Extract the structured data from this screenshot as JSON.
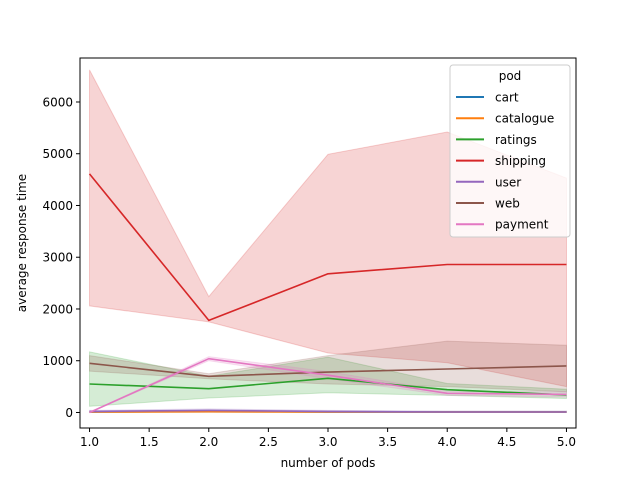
{
  "chart_data": {
    "type": "line",
    "title": "",
    "xlabel": "number of pods",
    "ylabel": "average response time",
    "xlim": [
      0.92,
      5.08
    ],
    "ylim": [
      -300,
      6850
    ],
    "xticks": [
      1.0,
      1.5,
      2.0,
      2.5,
      3.0,
      3.5,
      4.0,
      4.5,
      5.0
    ],
    "xtick_labels": [
      "1.0",
      "1.5",
      "2.0",
      "2.5",
      "3.0",
      "3.5",
      "4.0",
      "4.5",
      "5.0"
    ],
    "yticks": [
      0,
      1000,
      2000,
      3000,
      4000,
      5000,
      6000
    ],
    "ytick_labels": [
      "0",
      "1000",
      "2000",
      "3000",
      "4000",
      "5000",
      "6000"
    ],
    "grid": false,
    "legend": {
      "title": "pod",
      "placement": "top-right"
    },
    "x": [
      1,
      2,
      3,
      4,
      5
    ],
    "series": [
      {
        "name": "cart",
        "color": "#1f77b4",
        "values": [
          10,
          20,
          10,
          10,
          10
        ],
        "lower": [
          0,
          5,
          0,
          0,
          0
        ],
        "upper": [
          25,
          40,
          25,
          25,
          25
        ]
      },
      {
        "name": "catalogue",
        "color": "#ff7f0e",
        "values": [
          10,
          15,
          10,
          10,
          10
        ],
        "lower": [
          0,
          5,
          0,
          0,
          0
        ],
        "upper": [
          20,
          30,
          20,
          20,
          20
        ]
      },
      {
        "name": "ratings",
        "color": "#2ca02c",
        "values": [
          550,
          460,
          660,
          440,
          340
        ],
        "lower": [
          120,
          280,
          380,
          330,
          270
        ],
        "upper": [
          1170,
          700,
          1070,
          560,
          450
        ]
      },
      {
        "name": "shipping",
        "color": "#d62728",
        "values": [
          4610,
          1780,
          2680,
          2860,
          2860
        ],
        "lower": [
          2060,
          1750,
          1150,
          960,
          500
        ],
        "upper": [
          6620,
          2240,
          4990,
          5420,
          4530
        ]
      },
      {
        "name": "user",
        "color": "#9467bd",
        "values": [
          20,
          40,
          20,
          10,
          10
        ],
        "lower": [
          5,
          20,
          5,
          0,
          0
        ],
        "upper": [
          40,
          70,
          40,
          25,
          25
        ]
      },
      {
        "name": "web",
        "color": "#8c564b",
        "values": [
          950,
          700,
          780,
          840,
          900
        ],
        "lower": [
          800,
          650,
          550,
          500,
          400
        ],
        "upper": [
          1100,
          750,
          1100,
          1380,
          1300
        ]
      },
      {
        "name": "payment",
        "color": "#e377c2",
        "values": [
          0,
          1040,
          720,
          370,
          350
        ],
        "lower": [
          0,
          1000,
          650,
          330,
          300
        ],
        "upper": [
          0,
          1080,
          790,
          410,
          400
        ]
      }
    ]
  }
}
